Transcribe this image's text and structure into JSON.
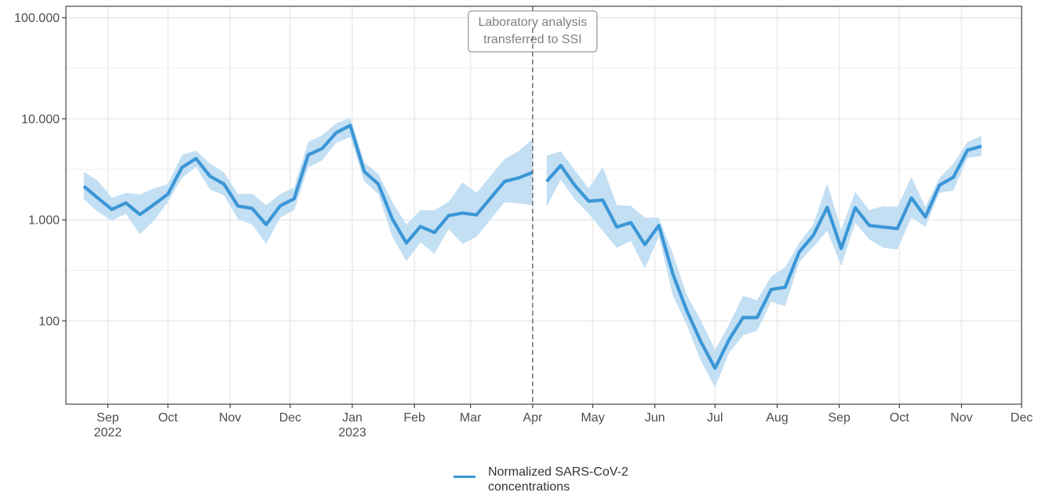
{
  "chart_data": {
    "type": "line",
    "y_scale": "log10",
    "ylim": [
      15,
      130000
    ],
    "xlim": [
      "2022-08-15",
      "2023-12-01"
    ],
    "grid": true,
    "colors": {
      "line": "#3b96d6",
      "ribbon": "#c3dff3",
      "grid": "#ebebeb",
      "annotation": "#7f7f7f"
    },
    "y_ticks": [
      {
        "value": 100,
        "label": "100"
      },
      {
        "value": 1000,
        "label": "1.000"
      },
      {
        "value": 10000,
        "label": "10.000"
      },
      {
        "value": 100000,
        "label": "100.000"
      }
    ],
    "x_ticks": [
      {
        "date": "2022-09-01",
        "label": "Sep",
        "label2": "2022"
      },
      {
        "date": "2022-10-01",
        "label": "Oct",
        "label2": ""
      },
      {
        "date": "2022-11-01",
        "label": "Nov",
        "label2": ""
      },
      {
        "date": "2022-12-01",
        "label": "Dec",
        "label2": ""
      },
      {
        "date": "2023-01-01",
        "label": "Jan",
        "label2": "2023"
      },
      {
        "date": "2023-02-01",
        "label": "Feb",
        "label2": ""
      },
      {
        "date": "2023-03-01",
        "label": "Mar",
        "label2": ""
      },
      {
        "date": "2023-04-01",
        "label": "Apr",
        "label2": ""
      },
      {
        "date": "2023-05-01",
        "label": "May",
        "label2": ""
      },
      {
        "date": "2023-06-01",
        "label": "Jun",
        "label2": ""
      },
      {
        "date": "2023-07-01",
        "label": "Jul",
        "label2": ""
      },
      {
        "date": "2023-08-01",
        "label": "Aug",
        "label2": ""
      },
      {
        "date": "2023-09-01",
        "label": "Sep",
        "label2": ""
      },
      {
        "date": "2023-10-01",
        "label": "Oct",
        "label2": ""
      },
      {
        "date": "2023-11-01",
        "label": "Nov",
        "label2": ""
      },
      {
        "date": "2023-12-01",
        "label": "Dec",
        "label2": ""
      }
    ],
    "annotation": {
      "date": "2023-04-01",
      "lines": [
        "Laboratory analysis",
        "transferred to SSI"
      ]
    },
    "series": [
      {
        "name": "Normalized SARS-CoV-2 concentrations",
        "segments": [
          [
            {
              "x": "2022-08-20",
              "y": 2150,
              "lo": 1600,
              "hi": 3000
            },
            {
              "x": "2022-08-27",
              "y": 1650,
              "lo": 1200,
              "hi": 2450
            },
            {
              "x": "2022-09-03",
              "y": 1270,
              "lo": 980,
              "hi": 1650
            },
            {
              "x": "2022-09-10",
              "y": 1470,
              "lo": 1150,
              "hi": 1850
            },
            {
              "x": "2022-09-17",
              "y": 1130,
              "lo": 720,
              "hi": 1780
            },
            {
              "x": "2022-09-24",
              "y": 1420,
              "lo": 980,
              "hi": 2050
            },
            {
              "x": "2022-10-01",
              "y": 1800,
              "lo": 1500,
              "hi": 2250
            },
            {
              "x": "2022-10-08",
              "y": 3300,
              "lo": 2600,
              "hi": 4400
            },
            {
              "x": "2022-10-15",
              "y": 4050,
              "lo": 3350,
              "hi": 4850
            },
            {
              "x": "2022-10-22",
              "y": 2700,
              "lo": 2000,
              "hi": 3600
            },
            {
              "x": "2022-10-29",
              "y": 2260,
              "lo": 1750,
              "hi": 2950
            },
            {
              "x": "2022-11-05",
              "y": 1370,
              "lo": 1020,
              "hi": 1800
            },
            {
              "x": "2022-11-12",
              "y": 1300,
              "lo": 900,
              "hi": 1820
            },
            {
              "x": "2022-11-19",
              "y": 900,
              "lo": 580,
              "hi": 1400
            },
            {
              "x": "2022-11-26",
              "y": 1380,
              "lo": 1050,
              "hi": 1800
            },
            {
              "x": "2022-12-03",
              "y": 1620,
              "lo": 1250,
              "hi": 2100
            },
            {
              "x": "2022-12-10",
              "y": 4400,
              "lo": 3300,
              "hi": 5900
            },
            {
              "x": "2022-12-17",
              "y": 5100,
              "lo": 3900,
              "hi": 6900
            },
            {
              "x": "2022-12-24",
              "y": 7300,
              "lo": 5800,
              "hi": 9000
            },
            {
              "x": "2022-12-31",
              "y": 8600,
              "lo": 6600,
              "hi": 10200
            },
            {
              "x": "2023-01-07",
              "y": 3000,
              "lo": 2400,
              "hi": 3700
            },
            {
              "x": "2023-01-14",
              "y": 2260,
              "lo": 1800,
              "hi": 2850
            },
            {
              "x": "2023-01-21",
              "y": 1020,
              "lo": 680,
              "hi": 1500
            },
            {
              "x": "2023-01-28",
              "y": 590,
              "lo": 390,
              "hi": 900
            },
            {
              "x": "2023-02-04",
              "y": 860,
              "lo": 600,
              "hi": 1250
            },
            {
              "x": "2023-02-11",
              "y": 750,
              "lo": 460,
              "hi": 1250
            },
            {
              "x": "2023-02-18",
              "y": 1100,
              "lo": 810,
              "hi": 1500
            },
            {
              "x": "2023-02-25",
              "y": 1170,
              "lo": 580,
              "hi": 2350
            },
            {
              "x": "2023-03-04",
              "y": 1120,
              "lo": 680,
              "hi": 1850
            },
            {
              "x": "2023-03-18",
              "y": 2400,
              "lo": 1500,
              "hi": 4000
            },
            {
              "x": "2023-03-25",
              "y": 2600,
              "lo": 1450,
              "hi": 4800
            },
            {
              "x": "2023-04-01",
              "y": 2950,
              "lo": 1400,
              "hi": 6300
            }
          ],
          [
            {
              "x": "2023-04-08",
              "y": 2400,
              "lo": 1350,
              "hi": 4300
            },
            {
              "x": "2023-04-15",
              "y": 3450,
              "lo": 2500,
              "hi": 4800
            },
            {
              "x": "2023-04-22",
              "y": 2200,
              "lo": 1600,
              "hi": 3100
            },
            {
              "x": "2023-04-29",
              "y": 1530,
              "lo": 1150,
              "hi": 2050
            },
            {
              "x": "2023-05-06",
              "y": 1570,
              "lo": 780,
              "hi": 3350
            },
            {
              "x": "2023-05-13",
              "y": 850,
              "lo": 530,
              "hi": 1400
            },
            {
              "x": "2023-05-20",
              "y": 940,
              "lo": 620,
              "hi": 1380
            },
            {
              "x": "2023-05-27",
              "y": 570,
              "lo": 330,
              "hi": 1050
            },
            {
              "x": "2023-06-03",
              "y": 880,
              "lo": 680,
              "hi": 1050
            },
            {
              "x": "2023-06-10",
              "y": 290,
              "lo": 180,
              "hi": 460
            },
            {
              "x": "2023-06-17",
              "y": 125,
              "lo": 90,
              "hi": 180
            },
            {
              "x": "2023-06-24",
              "y": 62,
              "lo": 40,
              "hi": 100
            },
            {
              "x": "2023-07-01",
              "y": 34,
              "lo": 22,
              "hi": 52
            },
            {
              "x": "2023-07-08",
              "y": 65,
              "lo": 48,
              "hi": 92
            },
            {
              "x": "2023-07-15",
              "y": 108,
              "lo": 72,
              "hi": 178
            },
            {
              "x": "2023-07-22",
              "y": 108,
              "lo": 80,
              "hi": 160
            },
            {
              "x": "2023-07-29",
              "y": 205,
              "lo": 155,
              "hi": 275
            },
            {
              "x": "2023-08-05",
              "y": 215,
              "lo": 140,
              "hi": 340
            },
            {
              "x": "2023-08-12",
              "y": 480,
              "lo": 380,
              "hi": 590
            },
            {
              "x": "2023-08-19",
              "y": 700,
              "lo": 540,
              "hi": 900
            },
            {
              "x": "2023-08-26",
              "y": 1330,
              "lo": 780,
              "hi": 2300
            },
            {
              "x": "2023-09-02",
              "y": 520,
              "lo": 350,
              "hi": 800
            },
            {
              "x": "2023-09-09",
              "y": 1320,
              "lo": 930,
              "hi": 1900
            },
            {
              "x": "2023-09-16",
              "y": 880,
              "lo": 640,
              "hi": 1250
            },
            {
              "x": "2023-09-23",
              "y": 850,
              "lo": 530,
              "hi": 1370
            },
            {
              "x": "2023-09-30",
              "y": 820,
              "lo": 510,
              "hi": 1350
            },
            {
              "x": "2023-10-07",
              "y": 1650,
              "lo": 1050,
              "hi": 2650
            },
            {
              "x": "2023-10-14",
              "y": 1070,
              "lo": 860,
              "hi": 1350
            },
            {
              "x": "2023-10-21",
              "y": 2200,
              "lo": 1850,
              "hi": 2600
            },
            {
              "x": "2023-10-28",
              "y": 2650,
              "lo": 1950,
              "hi": 3600
            },
            {
              "x": "2023-11-04",
              "y": 4900,
              "lo": 4100,
              "hi": 5900
            },
            {
              "x": "2023-11-11",
              "y": 5350,
              "lo": 4300,
              "hi": 6800
            }
          ]
        ]
      }
    ]
  }
}
